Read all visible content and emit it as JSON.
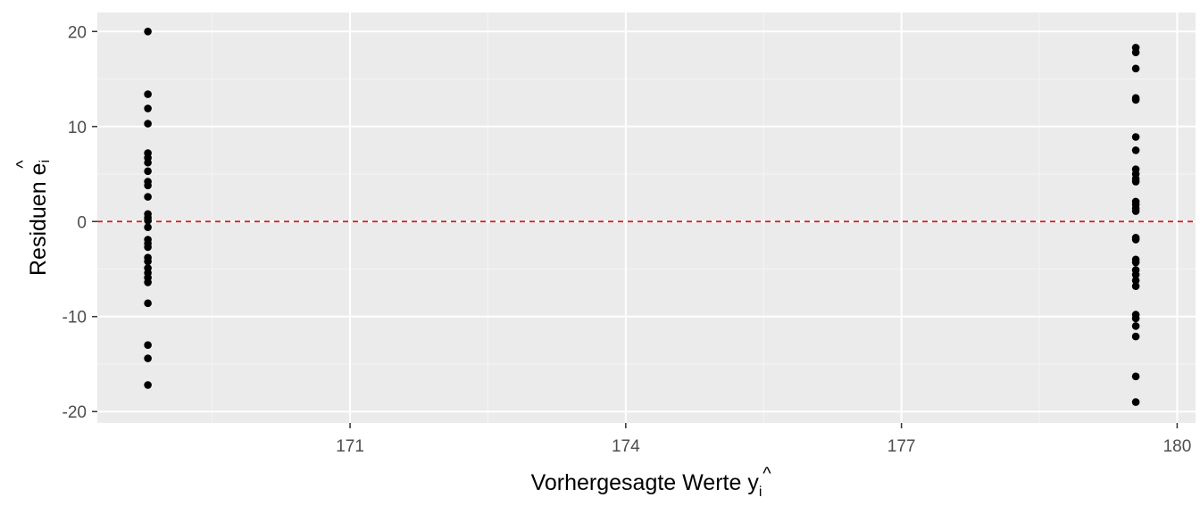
{
  "chart_data": {
    "type": "scatter",
    "title": "",
    "xlabel": {
      "text": "Vorhergesagte Werte ",
      "symbol": "y",
      "accent": "^",
      "subscript": "i"
    },
    "ylabel": {
      "text": "Residuen ",
      "symbol": "e",
      "accent": "^",
      "subscript": "i"
    },
    "xlim": [
      168.25,
      180.2
    ],
    "ylim": [
      -21.2,
      22
    ],
    "x_ticks": [
      171,
      174,
      177,
      180
    ],
    "x_tick_labels": [
      "171",
      "174",
      "177",
      "180"
    ],
    "y_ticks": [
      -20,
      -10,
      0,
      10,
      20
    ],
    "y_tick_labels": [
      "-20",
      "-10",
      "0",
      "10",
      "20"
    ],
    "grid": true,
    "legend": "none",
    "reference_line": {
      "y": 0,
      "style": "dashed",
      "color": "#d7191c"
    },
    "colors": {
      "panel": "#ebebeb",
      "grid_major": "#ffffff",
      "points": "#000000",
      "tick": "#333333"
    },
    "series": [
      {
        "x": 168.8,
        "y": [
          20,
          13.4,
          11.9,
          10.3,
          7.2,
          6.7,
          6.2,
          5.3,
          4.2,
          3.8,
          2.6,
          0.8,
          0.4,
          0.1,
          -0.6,
          -1.9,
          -2.3,
          -2.7,
          -3.8,
          -4.2,
          -4.9,
          -5.4,
          -5.9,
          -6.4,
          -8.6,
          -13.0,
          -14.4,
          -17.2
        ]
      },
      {
        "x": 179.55,
        "y": [
          18.3,
          17.8,
          16.1,
          13.0,
          12.8,
          8.9,
          7.5,
          5.5,
          5.0,
          4.5,
          4.2,
          2.1,
          1.8,
          1.4,
          1.1,
          -1.7,
          -1.9,
          -4.0,
          -4.3,
          -5.1,
          -5.6,
          -6.2,
          -6.8,
          -9.8,
          -10.2,
          -11.0,
          -12.1,
          -16.3,
          -19.0
        ]
      }
    ]
  }
}
